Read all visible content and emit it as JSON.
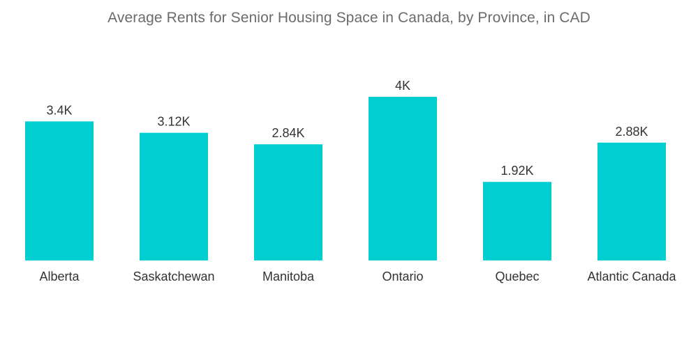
{
  "chart_data": {
    "type": "bar",
    "title": "Average Rents for Senior Housing Space in Canada, by Province, in CAD",
    "xlabel": "",
    "ylabel": "",
    "categories": [
      "Alberta",
      "Saskatchewan",
      "Manitoba",
      "Ontario",
      "Quebec",
      "Atlantic Canada"
    ],
    "values": [
      3400,
      3120,
      2840,
      4000,
      1920,
      2880
    ],
    "value_labels": [
      "3.4K",
      "3.12K",
      "2.84K",
      "4K",
      "1.92K",
      "2.88K"
    ],
    "ylim": [
      0,
      4000
    ],
    "grid": false,
    "legend": "none",
    "bar_color": "#00CED1"
  }
}
